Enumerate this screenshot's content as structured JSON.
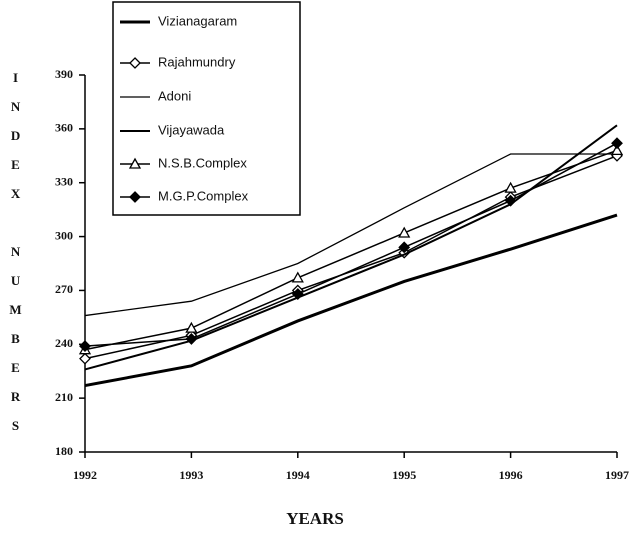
{
  "chart_data": {
    "type": "line",
    "xlabel": "YEARS",
    "ylabel": "INDEX NUMBERS",
    "x": [
      1992,
      1993,
      1994,
      1995,
      1996,
      1997
    ],
    "xlim": [
      1992,
      1997
    ],
    "xticks": [
      1992,
      1993,
      1994,
      1995,
      1996,
      1997
    ],
    "ylim": [
      180,
      390
    ],
    "yticks": [
      180,
      210,
      240,
      270,
      300,
      330,
      360,
      390
    ],
    "legend": "top-left",
    "series": [
      {
        "name": "Vizianagaram",
        "color": "#000000",
        "marker": "none",
        "width": 3,
        "values": [
          217,
          228,
          253,
          275,
          293,
          312
        ]
      },
      {
        "name": "Rajahmundry",
        "color": "#000000",
        "marker": "diamond-open",
        "width": 1.5,
        "values": [
          232,
          245,
          270,
          291,
          322,
          345
        ]
      },
      {
        "name": "Adoni",
        "color": "#000000",
        "marker": "none",
        "width": 1.3,
        "values": [
          256,
          264,
          285,
          316,
          346,
          346
        ]
      },
      {
        "name": "Vijayawada",
        "color": "#000000",
        "marker": "none",
        "width": 2,
        "values": [
          226,
          242,
          266,
          290,
          318,
          362
        ]
      },
      {
        "name": "N.S.B.Complex",
        "color": "#000000",
        "marker": "triangle-open",
        "width": 1.5,
        "values": [
          237,
          249,
          277,
          302,
          327,
          348
        ]
      },
      {
        "name": "M.G.P.Complex",
        "color": "#000000",
        "marker": "diamond-filled",
        "width": 1.5,
        "values": [
          239,
          243,
          268,
          294,
          320,
          352
        ]
      }
    ]
  }
}
